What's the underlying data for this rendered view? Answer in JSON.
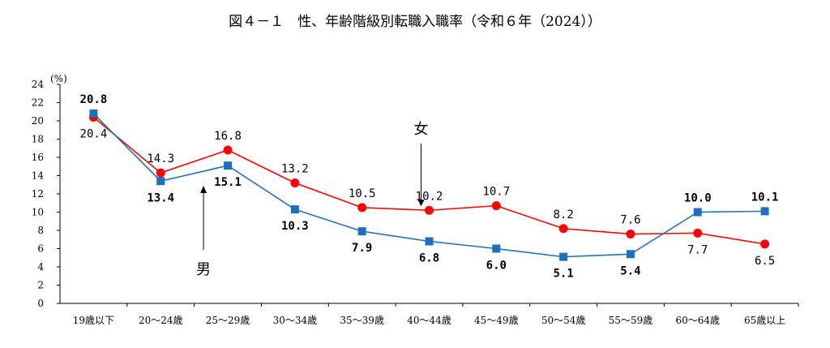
{
  "chart_data": {
    "type": "line",
    "title": "図４－１　性、年齢階級別転職入職率（令和６年（2024））",
    "ylabel": "(%)",
    "xlabel": "",
    "ylim": [
      0,
      24
    ],
    "yticks": [
      0,
      2,
      4,
      6,
      8,
      10,
      12,
      14,
      16,
      18,
      20,
      22,
      24
    ],
    "grid": false,
    "categories": [
      "19歳以下",
      "20～24歳",
      "25～29歳",
      "30～34歳",
      "35～39歳",
      "40～44歳",
      "45～49歳",
      "50～54歳",
      "55～59歳",
      "60～64歳",
      "65歳以上"
    ],
    "series": [
      {
        "name": "男",
        "color": "#1F6FBF",
        "marker": "square",
        "values": [
          20.8,
          13.4,
          15.1,
          10.3,
          7.9,
          6.8,
          6.0,
          5.1,
          5.4,
          10.0,
          10.1
        ],
        "labels": [
          "20.8",
          "13.4",
          "15.1",
          "10.3",
          "7.9",
          "6.8",
          "6.0",
          "5.1",
          "5.4",
          "10.0",
          "10.1"
        ],
        "label_side": [
          "above",
          "below",
          "below",
          "below",
          "below",
          "below",
          "below",
          "below",
          "below",
          "above",
          "above"
        ]
      },
      {
        "name": "女",
        "color": "#FF0000",
        "marker": "circle",
        "values": [
          20.4,
          14.3,
          16.8,
          13.2,
          10.5,
          10.2,
          10.7,
          8.2,
          7.6,
          7.7,
          6.5
        ],
        "labels": [
          "20.4",
          "14.3",
          "16.8",
          "13.2",
          "10.5",
          "10.2",
          "10.7",
          "8.2",
          "7.6",
          "7.7",
          "6.5"
        ],
        "label_side": [
          "below",
          "above",
          "above",
          "above",
          "above",
          "above",
          "above",
          "above",
          "above",
          "below",
          "below"
        ]
      }
    ],
    "annotations": [
      {
        "text": "女",
        "points_to_category": "40～44歳",
        "series": "女"
      },
      {
        "text": "男",
        "points_to_category": "25～29歳",
        "series": "男"
      }
    ]
  }
}
